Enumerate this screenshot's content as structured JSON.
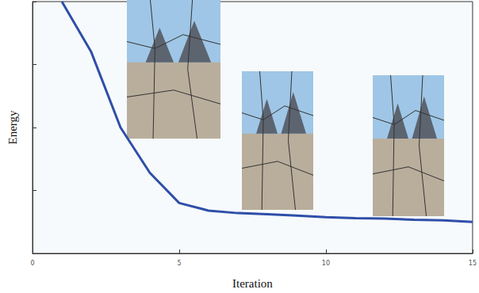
{
  "chart_data": {
    "type": "line",
    "x_label": "Iteration",
    "y_label": "Energy",
    "x": [
      1,
      2,
      3,
      4,
      5,
      6,
      7,
      8,
      9,
      10,
      11,
      12,
      13,
      14,
      15
    ],
    "values": [
      100,
      80,
      50,
      32,
      20,
      17,
      16,
      15.6,
      15,
      14.4,
      14,
      13.8,
      13.4,
      13.1,
      12.5
    ],
    "color": "#2e4fa8",
    "xlim": [
      0,
      15
    ],
    "xticks": [
      0,
      5,
      10,
      15
    ],
    "ylim": [
      0,
      100
    ],
    "yticks": [
      0,
      25,
      50,
      75,
      100
    ],
    "grid": false,
    "tick_labels": "x"
  }
}
